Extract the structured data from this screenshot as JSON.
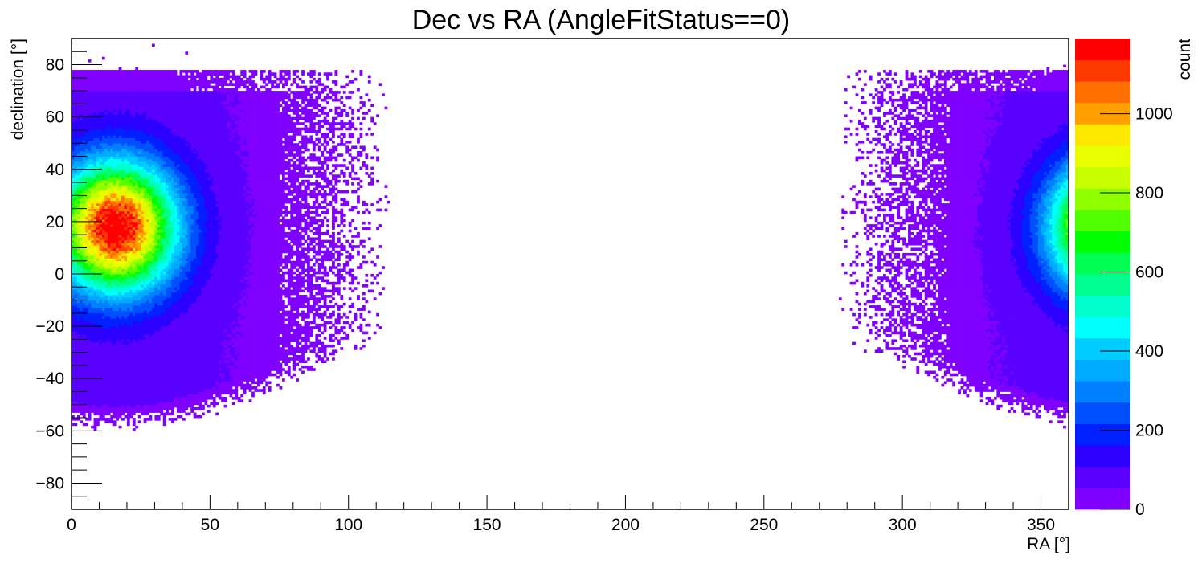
{
  "chart_data": {
    "type": "heatmap",
    "title": "Dec vs RA (AngleFitStatus==0)",
    "xlabel": "RA [°]",
    "ylabel": "declination [°]",
    "zlabel": "count",
    "xlim": [
      0,
      360
    ],
    "ylim": [
      -90,
      90
    ],
    "zlim": [
      0,
      1190
    ],
    "x_ticks": [
      0,
      50,
      100,
      150,
      200,
      250,
      300,
      350
    ],
    "x_tick_labels": [
      "0",
      "50",
      "100",
      "150",
      "200",
      "250",
      "300",
      "350"
    ],
    "y_ticks": [
      -80,
      -60,
      -40,
      -20,
      0,
      20,
      40,
      60,
      80
    ],
    "y_tick_labels": [
      "−80",
      "−60",
      "−40",
      "−20",
      "0",
      "20",
      "40",
      "60",
      "80"
    ],
    "z_ticks": [
      0,
      200,
      400,
      600,
      800,
      1000
    ],
    "z_tick_labels": [
      "0",
      "200",
      "400",
      "600",
      "800",
      "1000"
    ],
    "palette": [
      "#7f00ff",
      "#5a00ff",
      "#2b00ff",
      "#0020ff",
      "#0050ff",
      "#0080ff",
      "#00aaff",
      "#00ccff",
      "#00ffff",
      "#00ffcc",
      "#00ff90",
      "#00ff50",
      "#00ff00",
      "#50ff00",
      "#90ff00",
      "#c8ff00",
      "#e8ff00",
      "#ffe800",
      "#ffa000",
      "#ff7000",
      "#ff3a00",
      "#ff0000"
    ],
    "hotspot": {
      "ra": 16,
      "dec": 18,
      "peak_count": 1150
    },
    "grid": false,
    "legend": "color scale at right"
  }
}
